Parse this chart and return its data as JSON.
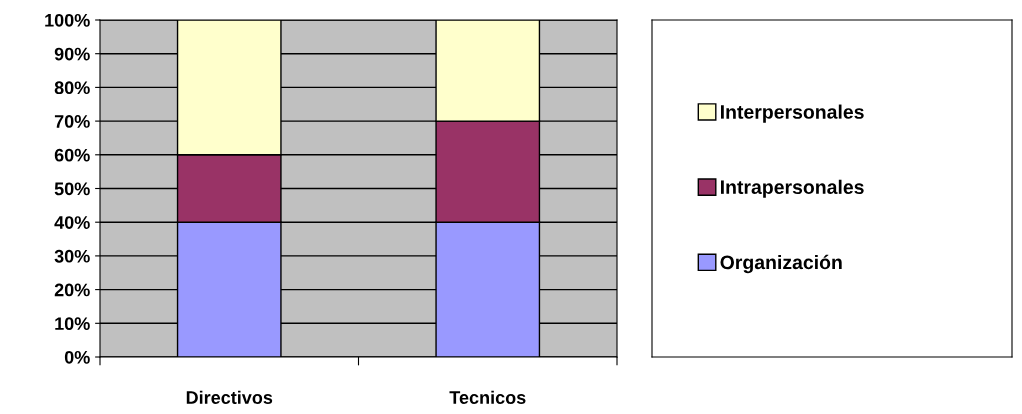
{
  "chart_data": {
    "type": "bar",
    "stacked": true,
    "categories": [
      "Directivos",
      "Tecnicos"
    ],
    "series": [
      {
        "name": "Organización",
        "color": "#9999ff",
        "values": [
          40,
          40
        ]
      },
      {
        "name": "Intrapersonales",
        "color": "#993366",
        "values": [
          20,
          30
        ]
      },
      {
        "name": "Interpersonales",
        "color": "#ffffcc",
        "values": [
          40,
          30
        ]
      }
    ],
    "ylim": [
      0,
      100
    ],
    "yticks": [
      {
        "value": 0,
        "label": "0%"
      },
      {
        "value": 10,
        "label": "10%"
      },
      {
        "value": 20,
        "label": "20%"
      },
      {
        "value": 30,
        "label": "30%"
      },
      {
        "value": 40,
        "label": "40%"
      },
      {
        "value": 50,
        "label": "50%"
      },
      {
        "value": 60,
        "label": "60%"
      },
      {
        "value": 70,
        "label": "70%"
      },
      {
        "value": 80,
        "label": "80%"
      },
      {
        "value": 90,
        "label": "90%"
      },
      {
        "value": 100,
        "label": "100%"
      }
    ],
    "grid": "y",
    "legend": "right"
  }
}
